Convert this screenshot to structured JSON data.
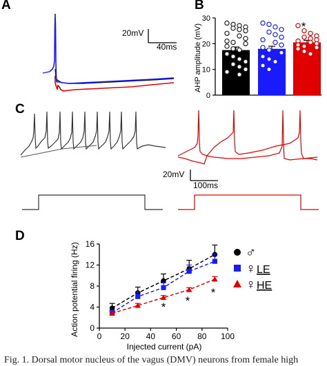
{
  "panels": {
    "a": {
      "letter": "A",
      "scale_v": "20mV",
      "scale_t": "40ms"
    },
    "b": {
      "letter": "B",
      "star": "*"
    },
    "c": {
      "letter": "C",
      "scale_v": "20mV",
      "scale_t": "100ms"
    },
    "d": {
      "letter": "D",
      "stars": [
        "*",
        "*",
        "*"
      ]
    }
  },
  "colors": {
    "black_group": "#111111",
    "blue_group": "#1a1aff",
    "red_group": "#e00000"
  },
  "chart_data": [
    {
      "type": "bar",
      "panel": "B",
      "ylabel": "AHP amplitude (mV)",
      "ylim": [
        0,
        30
      ],
      "yticks": [
        "0",
        "10",
        "20",
        "30"
      ],
      "categories": [
        "",
        "",
        ""
      ],
      "values": [
        17.5,
        18,
        20.5
      ],
      "errors": [
        1.2,
        1.0,
        0.8
      ],
      "bar_colors": [
        "#000000",
        "#1a1aff",
        "#e00000"
      ],
      "points": [
        [
          28,
          27.5,
          27,
          26.5,
          26,
          25.5,
          25,
          24,
          23,
          22,
          21,
          20.5,
          20,
          19,
          18,
          17.5,
          16,
          15,
          14,
          13,
          12,
          11,
          10,
          9,
          8
        ],
        [
          28,
          27.5,
          26.5,
          25.5,
          24.5,
          23.5,
          22.5,
          21.5,
          20.5,
          19.5,
          18.5,
          17.5,
          16.5,
          15,
          14,
          13,
          11.5,
          10
        ],
        [
          27,
          25,
          24,
          23,
          22.5,
          22,
          21.5,
          21,
          20.5,
          20,
          19.5,
          19,
          18.5,
          18,
          17,
          16
        ]
      ],
      "grid": false
    },
    {
      "type": "line",
      "panel": "D",
      "xlabel": "Injected current (pA)",
      "ylabel": "Action potential firing (Hz)",
      "xlim": [
        0,
        100
      ],
      "ylim": [
        0,
        16
      ],
      "xticks": [
        "0",
        "20",
        "40",
        "60",
        "80",
        "100"
      ],
      "yticks": [
        "0",
        "4",
        "8",
        "12",
        "16"
      ],
      "x": [
        10,
        30,
        50,
        70,
        90
      ],
      "series": [
        {
          "name": "♂",
          "values": [
            3.8,
            6.7,
            9.0,
            11.3,
            14.0
          ],
          "errors": [
            0.9,
            1.1,
            1.3,
            1.6,
            1.8
          ],
          "color": "#000000",
          "marker": "circle",
          "label_suffix": ""
        },
        {
          "name": "♀LE",
          "values": [
            2.9,
            6.0,
            7.7,
            10.8,
            12.7
          ],
          "errors": [
            0.5,
            0.9,
            0.9,
            1.2,
            1.4
          ],
          "color": "#1a1aff",
          "marker": "square",
          "label_suffix": "LE"
        },
        {
          "name": "♀HE",
          "values": [
            2.8,
            4.3,
            5.8,
            7.3,
            9.3
          ],
          "errors": [
            0.3,
            0.4,
            0.4,
            0.4,
            0.5
          ],
          "color": "#e00000",
          "marker": "triangle",
          "label_suffix": "HE"
        }
      ],
      "legend": "right",
      "grid": false
    }
  ],
  "caption": "Fig. 1. Dorsal motor nucleus of the vagus (DMV) neurons from female high"
}
